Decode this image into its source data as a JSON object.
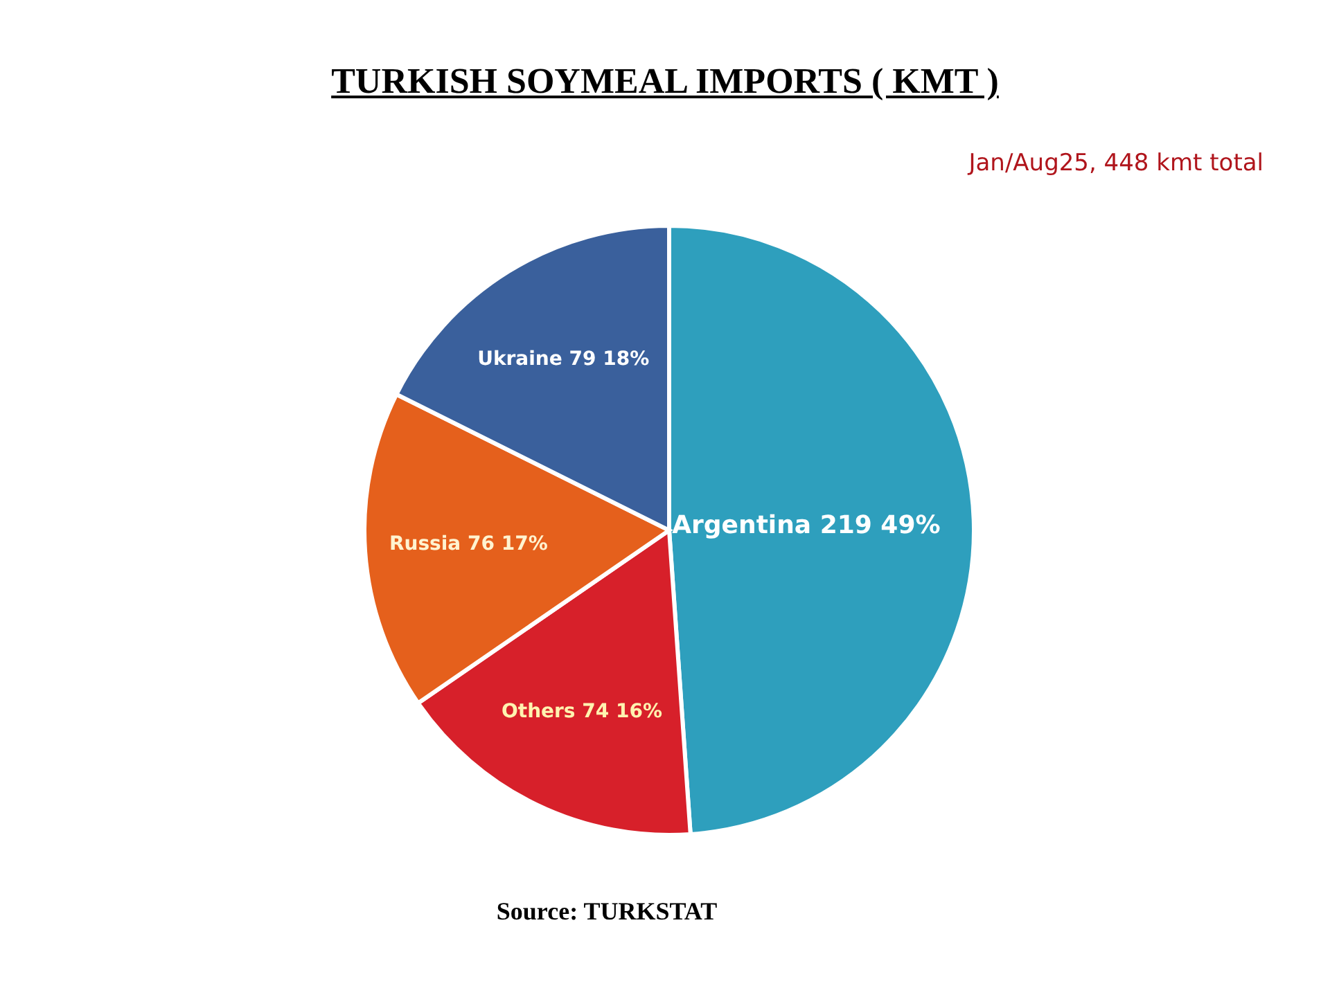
{
  "chart_data": {
    "type": "pie",
    "title": "TURKISH SOYMEAL IMPORTS ( KMT )",
    "subtitle": "Jan/Aug25, 448 kmt total",
    "categories": [
      "Argentina",
      "Others",
      "Russia",
      "Ukraine"
    ],
    "values": [
      219,
      74,
      76,
      79
    ],
    "value_labels": [
      "219 49%",
      "74 16%",
      "76 17%",
      "79 18%"
    ],
    "colors": [
      "#2e9fbd",
      "#d7202a",
      "#e5601c",
      "#3a609c"
    ],
    "annotations": [
      "Source: TURKSTAT"
    ],
    "legend": false
  }
}
